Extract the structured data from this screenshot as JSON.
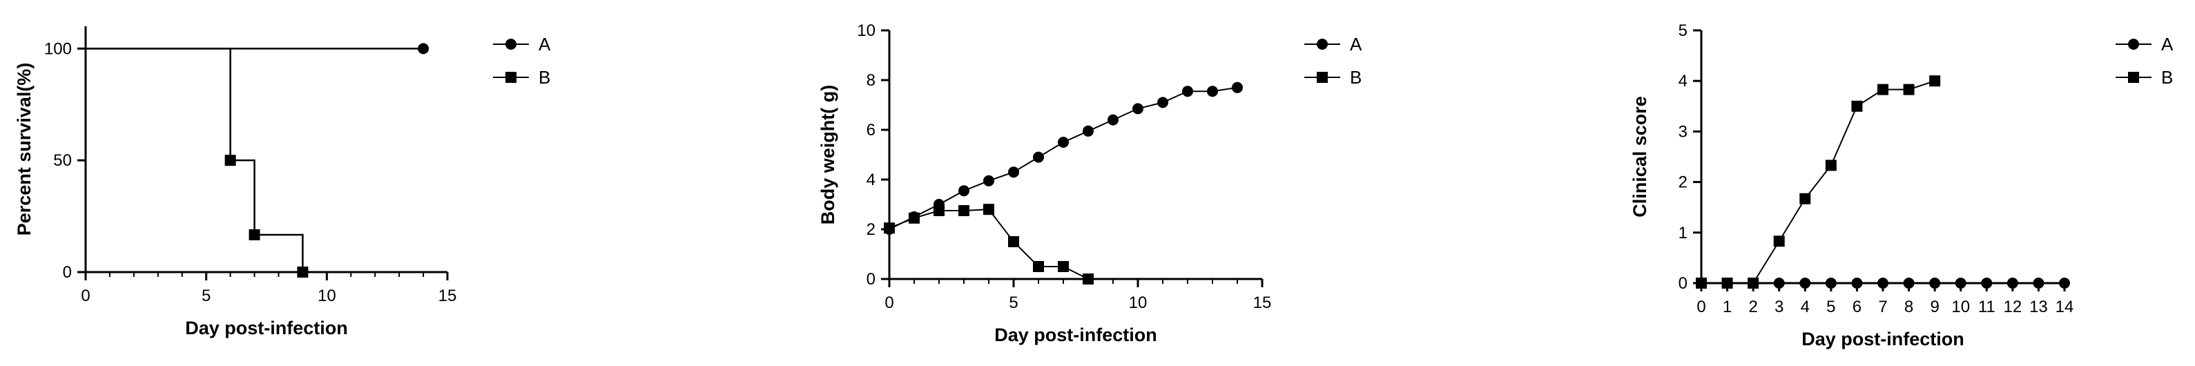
{
  "colors": {
    "ink": "#000000",
    "series_a": "#000000",
    "series_b": "#000000"
  },
  "legend_markers": {
    "A": "circle",
    "B": "square"
  },
  "chart_data": [
    {
      "type": "line",
      "subtype": "survival-step",
      "xlabel": "Day post-infection",
      "ylabel": "Percent survival(%)",
      "xlim": [
        0,
        15
      ],
      "ylim": [
        0,
        110
      ],
      "xticks": [
        "0",
        "5",
        "10",
        "15"
      ],
      "yticks": [
        "0",
        "50",
        "100"
      ],
      "grid": false,
      "legend_position": "top-right",
      "series": [
        {
          "name": "A",
          "marker": "circle",
          "x": [
            0,
            14
          ],
          "y": [
            100,
            100
          ],
          "marked_x": [
            14
          ],
          "marked_y": [
            100
          ]
        },
        {
          "name": "B",
          "marker": "square",
          "x": [
            0,
            6,
            7,
            9
          ],
          "y": [
            100,
            50,
            16.7,
            0
          ],
          "marked_x": [
            6,
            7,
            9
          ],
          "marked_y": [
            50,
            16.7,
            0
          ]
        }
      ]
    },
    {
      "type": "line",
      "xlabel": "Day post-infection",
      "ylabel": "Body weight( g)",
      "xlim": [
        0,
        15
      ],
      "ylim": [
        0,
        10
      ],
      "xticks": [
        "0",
        "5",
        "10",
        "15"
      ],
      "yticks": [
        "0",
        "2",
        "4",
        "6",
        "8",
        "10"
      ],
      "grid": false,
      "legend_position": "top-right",
      "series": [
        {
          "name": "A",
          "marker": "circle",
          "x": [
            0,
            1,
            2,
            3,
            4,
            5,
            6,
            7,
            8,
            9,
            10,
            11,
            12,
            13,
            14
          ],
          "y": [
            2.0,
            2.5,
            3.0,
            3.55,
            3.95,
            4.3,
            4.9,
            5.5,
            5.95,
            6.4,
            6.85,
            7.1,
            7.55,
            7.55,
            7.7
          ]
        },
        {
          "name": "B",
          "marker": "square",
          "x": [
            0,
            1,
            2,
            3,
            4,
            5,
            6,
            7,
            8
          ],
          "y": [
            2.05,
            2.45,
            2.75,
            2.75,
            2.8,
            1.5,
            0.5,
            0.5,
            0.0
          ]
        }
      ]
    },
    {
      "type": "line",
      "xlabel": "Day post-infection",
      "ylabel": "Clinical score",
      "xlim": [
        0,
        14
      ],
      "ylim": [
        0,
        5
      ],
      "xticks": [
        "0",
        "1",
        "2",
        "3",
        "4",
        "5",
        "6",
        "7",
        "8",
        "9",
        "10",
        "11",
        "12",
        "13",
        "14"
      ],
      "yticks": [
        "0",
        "1",
        "2",
        "3",
        "4",
        "5"
      ],
      "grid": false,
      "legend_position": "top-right",
      "series": [
        {
          "name": "A",
          "marker": "circle",
          "x": [
            0,
            1,
            2,
            3,
            4,
            5,
            6,
            7,
            8,
            9,
            10,
            11,
            12,
            13,
            14
          ],
          "y": [
            0,
            0,
            0,
            0,
            0,
            0,
            0,
            0,
            0,
            0,
            0,
            0,
            0,
            0,
            0
          ]
        },
        {
          "name": "B",
          "marker": "square",
          "x": [
            0,
            1,
            2,
            3,
            4,
            5,
            6,
            7,
            8,
            9
          ],
          "y": [
            0,
            0,
            0,
            0.83,
            1.67,
            2.33,
            3.5,
            3.83,
            3.83,
            4.0
          ]
        }
      ]
    }
  ]
}
